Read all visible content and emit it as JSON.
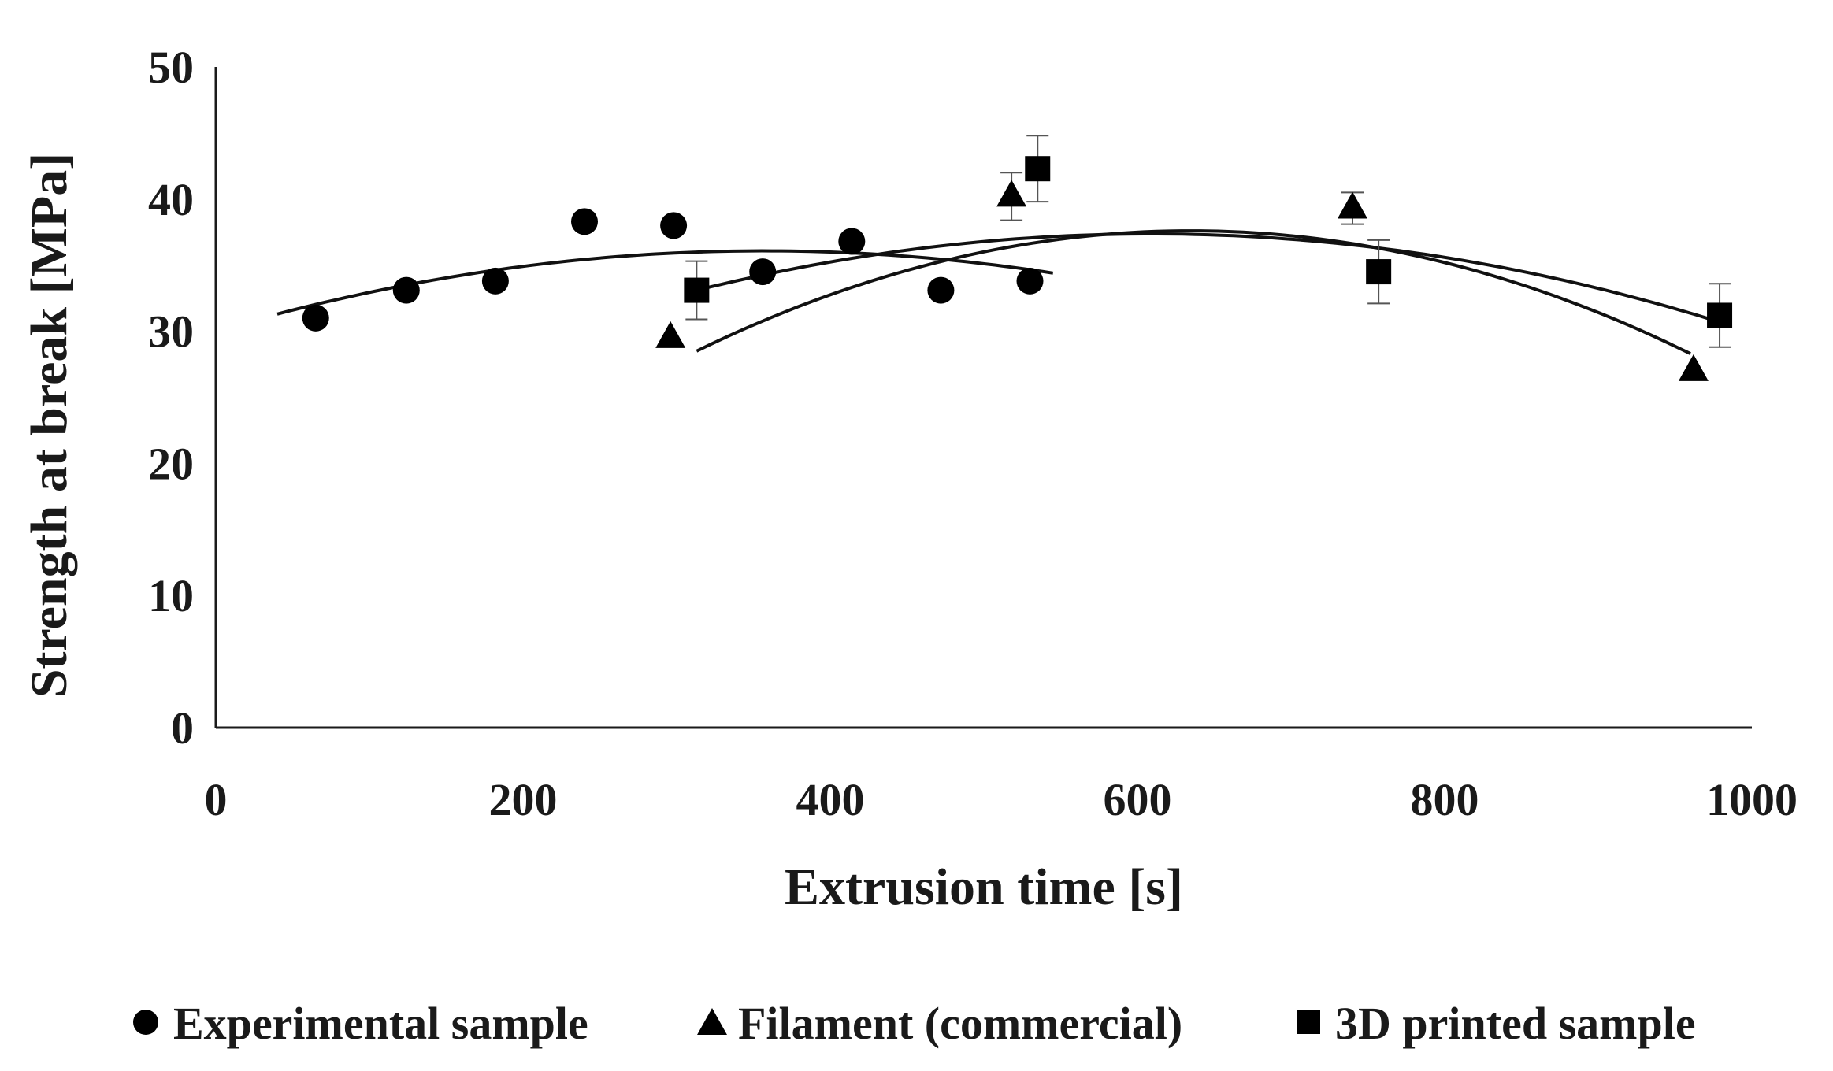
{
  "chart_data": {
    "type": "scatter",
    "title": "",
    "xlabel": "Extrusion time [s]",
    "ylabel": "Strength at break  [MPa]",
    "xlim": [
      0,
      1000
    ],
    "ylim": [
      0,
      50
    ],
    "xticks": [
      0,
      200,
      400,
      600,
      800,
      1000
    ],
    "yticks": [
      0,
      10,
      20,
      30,
      40,
      50
    ],
    "grid": false,
    "legend_position": "bottom",
    "series": [
      {
        "name": "Experimental sample",
        "marker": "circle",
        "points": [
          {
            "x": 65,
            "y": 31.0
          },
          {
            "x": 124,
            "y": 33.1
          },
          {
            "x": 182,
            "y": 33.8
          },
          {
            "x": 240,
            "y": 38.3
          },
          {
            "x": 298,
            "y": 38.0
          },
          {
            "x": 356,
            "y": 34.5
          },
          {
            "x": 414,
            "y": 36.8
          },
          {
            "x": 472,
            "y": 33.1
          },
          {
            "x": 530,
            "y": 33.8
          }
        ],
        "trend": {
          "type": "polynomial",
          "order": 2,
          "x_range": [
            40,
            545
          ],
          "curve": [
            [
              40,
              31.3
            ],
            [
              280,
              35.8
            ],
            [
              545,
              34.4
            ]
          ]
        }
      },
      {
        "name": "Filament (commercial)",
        "marker": "triangle",
        "points": [
          {
            "x": 296,
            "y": 29.5
          },
          {
            "x": 518,
            "y": 40.2,
            "error": 1.8
          },
          {
            "x": 740,
            "y": 39.3,
            "error": 1.2
          },
          {
            "x": 962,
            "y": 27.0
          }
        ],
        "trend": {
          "type": "polynomial",
          "order": 2,
          "x_range": [
            313,
            960
          ],
          "curve": [
            [
              313,
              28.5
            ],
            [
              637,
              37.6
            ],
            [
              960,
              28.3
            ]
          ]
        }
      },
      {
        "name": "3D printed sample",
        "marker": "square",
        "points": [
          {
            "x": 313,
            "y": 33.1,
            "error": 2.2
          },
          {
            "x": 535,
            "y": 42.3,
            "error": 2.5
          },
          {
            "x": 757,
            "y": 34.5,
            "error": 2.4
          },
          {
            "x": 979,
            "y": 31.2,
            "error": 2.4
          }
        ],
        "trend": {
          "type": "polynomial",
          "order": 2,
          "x_range": [
            313,
            979
          ],
          "curve": [
            [
              313,
              33.1
            ],
            [
              646,
              37.3
            ],
            [
              979,
              30.7
            ]
          ]
        }
      }
    ]
  }
}
